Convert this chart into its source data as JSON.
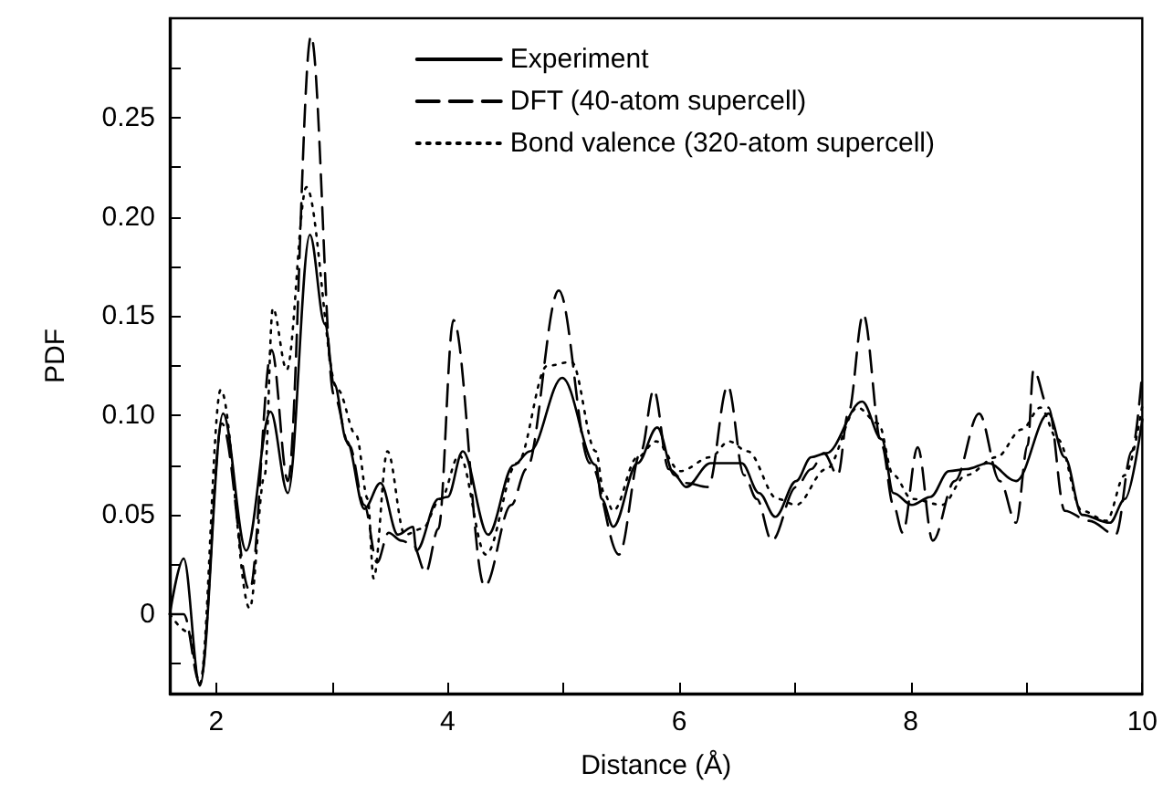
{
  "chart_data": {
    "type": "line",
    "xlabel": "Distance (Å)",
    "ylabel": "PDF",
    "xlim": [
      1.6,
      10
    ],
    "xticks": [
      2,
      {
        "value": 3,
        "label": null
      },
      4,
      {
        "value": 5,
        "label": null
      },
      6,
      {
        "value": 7,
        "label": null
      },
      8,
      {
        "value": 9,
        "label": null
      },
      10
    ],
    "ylim": [
      -0.04,
      0.3
    ],
    "yticks": [
      {
        "value": -0.025,
        "label": null
      },
      0,
      {
        "value": 0.025,
        "label": null
      },
      0.05,
      {
        "value": 0.075,
        "label": null
      },
      {
        "value": 0.1,
        "label": "0.10"
      },
      {
        "value": 0.125,
        "label": null
      },
      0.15,
      {
        "value": 0.175,
        "label": null
      },
      {
        "value": 0.2,
        "label": "0.20"
      },
      {
        "value": 0.225,
        "label": null
      },
      0.25,
      {
        "value": 0.275,
        "label": null
      }
    ],
    "grid": false,
    "legend": "top right",
    "marker": "none",
    "series": [
      {
        "name": "Experiment",
        "color": "#000000",
        "line_style": "solid",
        "x": [
          1.6,
          1.72,
          1.86,
          2.06,
          2.26,
          2.47,
          2.62,
          2.81,
          2.94,
          3.02,
          3.13,
          3.28,
          3.42,
          3.57,
          3.7,
          3.73,
          3.92,
          4.0,
          4.13,
          4.35,
          4.57,
          4.71,
          4.99,
          5.28,
          5.33,
          5.43,
          5.64,
          5.81,
          5.96,
          6.06,
          6.27,
          6.54,
          6.69,
          6.83,
          7.01,
          7.14,
          7.27,
          7.58,
          7.75,
          7.85,
          8.01,
          8.17,
          8.33,
          8.48,
          8.67,
          8.91,
          9.19,
          9.33,
          9.48,
          9.72,
          9.85,
          10
        ],
        "values": [
          0,
          0.028,
          -0.036,
          0.101,
          0.032,
          0.102,
          0.061,
          0.191,
          0.146,
          0.116,
          0.087,
          0.053,
          0.066,
          0.04,
          0.044,
          0.032,
          0.058,
          0.059,
          0.082,
          0.04,
          0.075,
          0.082,
          0.119,
          0.075,
          0.058,
          0.044,
          0.076,
          0.094,
          0.07,
          0.064,
          0.076,
          0.076,
          0.061,
          0.049,
          0.067,
          0.079,
          0.081,
          0.107,
          0.088,
          0.061,
          0.055,
          0.059,
          0.072,
          0.073,
          0.076,
          0.067,
          0.101,
          0.079,
          0.05,
          0.046,
          0.058,
          0.098
        ]
      },
      {
        "name": "DFT (40-atom supercell)",
        "color": "#000000",
        "line_style": "dashed",
        "x": [
          1.6,
          1.72,
          1.86,
          2.05,
          2.29,
          2.48,
          2.62,
          2.82,
          3.02,
          3.15,
          3.28,
          3.39,
          3.49,
          3.6,
          3.7,
          3.81,
          3.92,
          4.05,
          4.32,
          4.55,
          4.68,
          4.96,
          5.23,
          5.48,
          5.67,
          5.78,
          5.91,
          6.06,
          6.25,
          6.42,
          6.56,
          6.67,
          6.8,
          7.01,
          7.14,
          7.25,
          7.37,
          7.46,
          7.59,
          7.75,
          7.85,
          7.93,
          8.06,
          8.19,
          8.38,
          8.59,
          8.77,
          8.91,
          9.01,
          9.06,
          9.19,
          9.33,
          9.54,
          9.77,
          9.91,
          10
        ],
        "values": [
          0,
          0,
          -0.035,
          0.096,
          0.012,
          0.133,
          0.067,
          0.291,
          0.11,
          0.085,
          0.055,
          0.026,
          0.041,
          0.037,
          0.035,
          0.021,
          0.043,
          0.148,
          0.014,
          0.055,
          0.073,
          0.163,
          0.076,
          0.03,
          0.082,
          0.113,
          0.073,
          0.066,
          0.064,
          0.115,
          0.07,
          0.058,
          0.037,
          0.064,
          0.073,
          0.081,
          0.07,
          0.101,
          0.151,
          0.085,
          0.055,
          0.041,
          0.084,
          0.037,
          0.067,
          0.101,
          0.067,
          0.046,
          0.085,
          0.123,
          0.104,
          0.052,
          0.047,
          0.04,
          0.082,
          0.122
        ]
      },
      {
        "name": "Bond valence (320-atom supercell)",
        "color": "#000000",
        "line_style": "dotted",
        "x": [
          1.6,
          1.76,
          1.86,
          2.04,
          2.29,
          2.42,
          2.49,
          2.61,
          2.78,
          3.05,
          3.21,
          3.31,
          3.36,
          3.48,
          3.63,
          3.78,
          3.94,
          4.1,
          4.33,
          4.6,
          4.86,
          5.07,
          5.28,
          5.35,
          5.43,
          5.64,
          5.8,
          6.01,
          6.27,
          6.43,
          6.59,
          6.85,
          7.01,
          7.27,
          7.54,
          7.72,
          7.85,
          8.01,
          8.27,
          8.48,
          8.74,
          8.96,
          9.12,
          9.27,
          9.48,
          9.69,
          9.85,
          10
        ],
        "values": [
          0,
          -0.009,
          -0.035,
          0.113,
          0.003,
          0.07,
          0.154,
          0.123,
          0.215,
          0.113,
          0.09,
          0.058,
          0.018,
          0.082,
          0.04,
          0.043,
          0.058,
          0.08,
          0.03,
          0.076,
          0.125,
          0.127,
          0.082,
          0.061,
          0.052,
          0.079,
          0.087,
          0.072,
          0.079,
          0.087,
          0.082,
          0.058,
          0.055,
          0.073,
          0.104,
          0.096,
          0.07,
          0.058,
          0.055,
          0.07,
          0.079,
          0.093,
          0.104,
          0.088,
          0.052,
          0.047,
          0.07,
          0.105
        ]
      }
    ]
  }
}
